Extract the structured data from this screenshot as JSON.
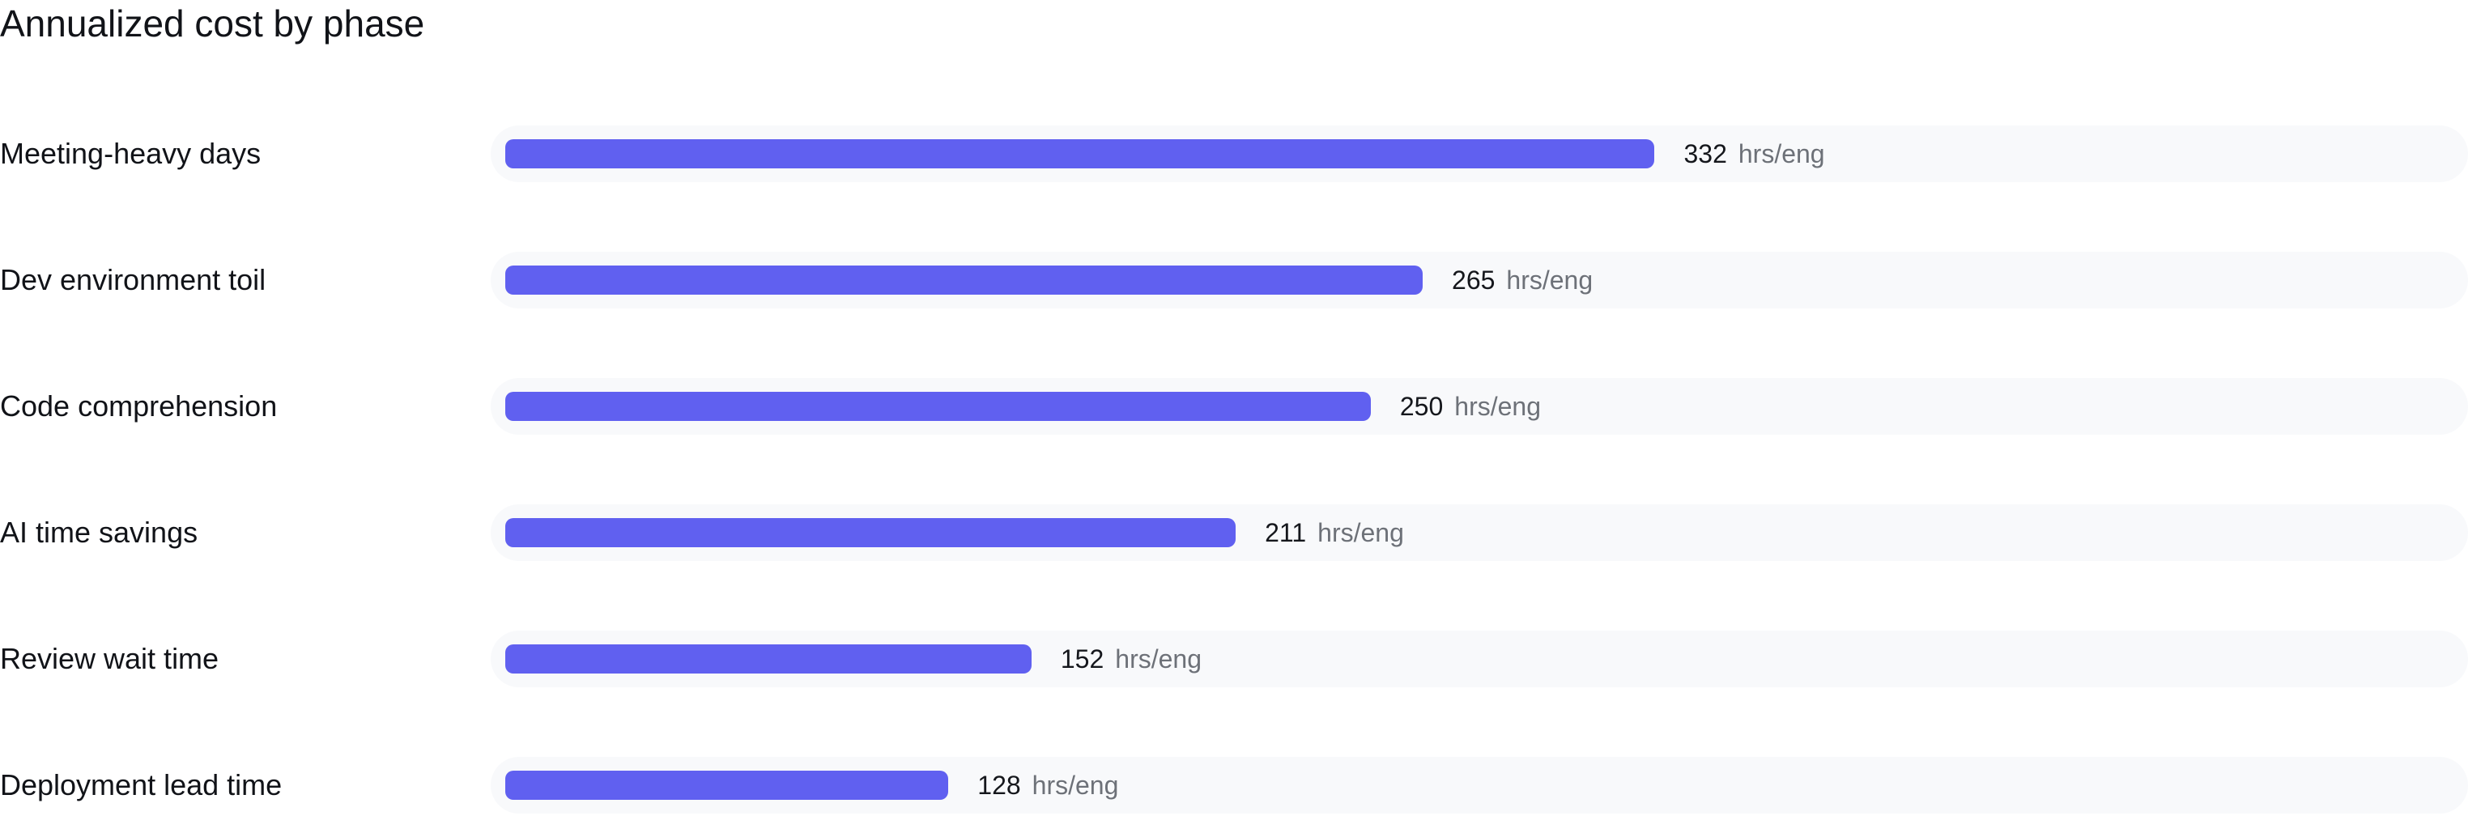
{
  "chart_data": {
    "type": "bar",
    "orientation": "horizontal",
    "title": "Annualized cost by phase",
    "categories": [
      "Meeting-heavy days",
      "Dev environment toil",
      "Code comprehension",
      "AI time savings",
      "Review wait time",
      "Deployment lead time"
    ],
    "values": [
      332,
      265,
      250,
      211,
      152,
      128
    ],
    "unit": "hrs/eng",
    "xlim": [
      0,
      421
    ],
    "grid": false,
    "legend": "none",
    "colors": {
      "bar": "#6060f0",
      "track": "#f8f9fb",
      "value": "#15171c",
      "unit": "#6d7178"
    }
  }
}
